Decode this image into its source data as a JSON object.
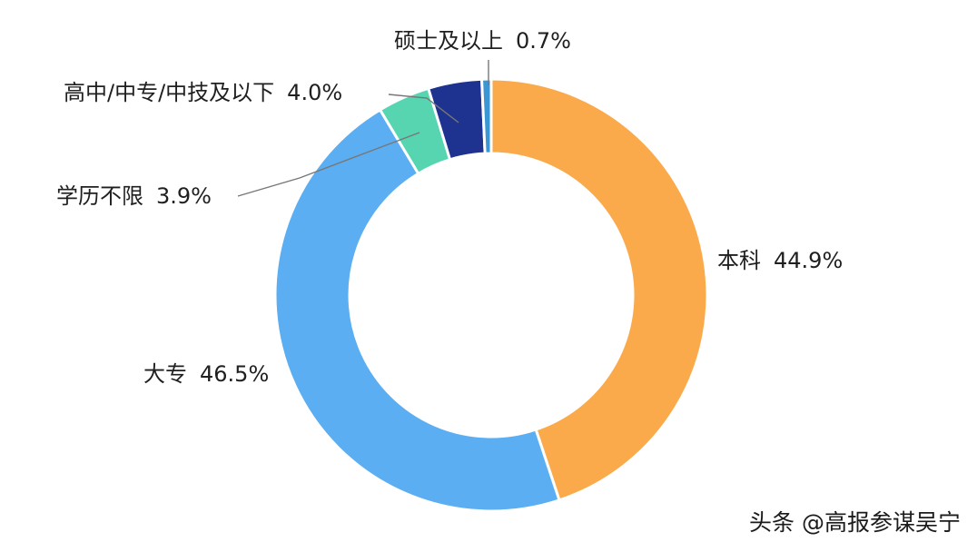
{
  "chart_data": {
    "type": "pie",
    "subtype": "donut",
    "slices": [
      {
        "name": "本科",
        "value": 44.9,
        "label": "44.9%",
        "color": "#FBAA4B"
      },
      {
        "name": "大专",
        "value": 46.5,
        "label": "46.5%",
        "color": "#5CAEF2"
      },
      {
        "name": "学历不限",
        "value": 3.9,
        "label": "3.9%",
        "color": "#57D5B0"
      },
      {
        "name": "高中/中专/中技及以下",
        "value": 4.0,
        "label": "4.0%",
        "color": "#1E328F"
      },
      {
        "name": "硕士及以上",
        "value": 0.7,
        "label": "0.7%",
        "color": "#3A97D4"
      }
    ],
    "start_angle_deg": 0,
    "direction": "clockwise",
    "legend": "none"
  },
  "watermark": {
    "text": "头条 @高报参谋吴宁"
  }
}
